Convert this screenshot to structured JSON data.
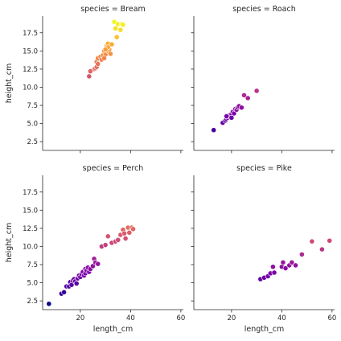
{
  "chart_data": {
    "type": "scatter",
    "xlabel": "length_cm",
    "ylabel": "height_cm",
    "xlim": [
      5,
      61
    ],
    "ylim": [
      1.3,
      19.8
    ],
    "xticks": [
      20,
      40,
      60
    ],
    "yticks": [
      2.5,
      5.0,
      7.5,
      10.0,
      12.5,
      15.0,
      17.5
    ],
    "xtick_labels": [
      "20",
      "40",
      "60"
    ],
    "ytick_labels": [
      "2.5",
      "5.0",
      "7.5",
      "10.0",
      "12.5",
      "15.0",
      "17.5"
    ],
    "hue_var": "height_cm",
    "colormap": "plasma",
    "hue_range": [
      2.1,
      19.0
    ],
    "facets": [
      {
        "title": "species = Bream",
        "points": [
          [
            23.5,
            11.5
          ],
          [
            24.0,
            12.2
          ],
          [
            25.5,
            12.5
          ],
          [
            26.0,
            12.6
          ],
          [
            26.5,
            12.8
          ],
          [
            26.5,
            13.5
          ],
          [
            27.0,
            14.0
          ],
          [
            27.0,
            13.2
          ],
          [
            28.0,
            14.2
          ],
          [
            28.5,
            13.8
          ],
          [
            29.0,
            14.4
          ],
          [
            29.5,
            15.0
          ],
          [
            30.0,
            14.5
          ],
          [
            30.5,
            15.3
          ],
          [
            31.0,
            15.0
          ],
          [
            29.5,
            14.0
          ],
          [
            30.5,
            15.7
          ],
          [
            31.0,
            16.0
          ],
          [
            31.5,
            15.2
          ],
          [
            32.0,
            14.6
          ],
          [
            33.5,
            19.0
          ],
          [
            34.0,
            18.1
          ],
          [
            34.5,
            16.9
          ],
          [
            35.0,
            18.7
          ],
          [
            36.0,
            17.9
          ],
          [
            36.5,
            18.7
          ],
          [
            37.0,
            18.6
          ],
          [
            31.0,
            15.5
          ],
          [
            32.5,
            15.9
          ],
          [
            30.0,
            15.2
          ]
        ]
      },
      {
        "title": "species = Roach",
        "points": [
          [
            12.9,
            4.1
          ],
          [
            16.5,
            5.1
          ],
          [
            17.5,
            5.4
          ],
          [
            18.0,
            5.6
          ],
          [
            18.5,
            5.8
          ],
          [
            19.0,
            6.1
          ],
          [
            19.5,
            5.9
          ],
          [
            20.0,
            6.3
          ],
          [
            20.5,
            6.6
          ],
          [
            21.0,
            6.4
          ],
          [
            21.5,
            7.0
          ],
          [
            22.0,
            6.9
          ],
          [
            22.5,
            7.2
          ],
          [
            23.0,
            7.4
          ],
          [
            24.0,
            7.2
          ],
          [
            25.0,
            8.9
          ],
          [
            26.5,
            8.5
          ],
          [
            30.0,
            9.5
          ],
          [
            18.0,
            6.0
          ],
          [
            20.0,
            5.8
          ]
        ]
      },
      {
        "title": "species = Perch",
        "points": [
          [
            7.5,
            2.1
          ],
          [
            12.5,
            3.5
          ],
          [
            13.5,
            3.7
          ],
          [
            14.5,
            4.5
          ],
          [
            15.5,
            4.5
          ],
          [
            16.0,
            5.1
          ],
          [
            16.5,
            4.7
          ],
          [
            17.0,
            5.3
          ],
          [
            17.5,
            5.5
          ],
          [
            18.0,
            5.2
          ],
          [
            18.5,
            4.9
          ],
          [
            19.0,
            5.6
          ],
          [
            19.5,
            6.0
          ],
          [
            20.0,
            5.8
          ],
          [
            20.5,
            6.2
          ],
          [
            21.0,
            6.5
          ],
          [
            21.5,
            6.0
          ],
          [
            22.0,
            6.3
          ],
          [
            22.0,
            6.9
          ],
          [
            22.5,
            6.7
          ],
          [
            23.0,
            7.1
          ],
          [
            23.5,
            6.5
          ],
          [
            24.0,
            6.9
          ],
          [
            25.0,
            7.3
          ],
          [
            25.5,
            8.3
          ],
          [
            26.0,
            7.8
          ],
          [
            27.0,
            7.6
          ],
          [
            28.5,
            10.0
          ],
          [
            30.0,
            10.2
          ],
          [
            31.0,
            11.4
          ],
          [
            32.5,
            10.5
          ],
          [
            34.0,
            10.7
          ],
          [
            35.0,
            10.9
          ],
          [
            36.0,
            11.6
          ],
          [
            37.0,
            12.3
          ],
          [
            37.5,
            11.8
          ],
          [
            38.0,
            11.1
          ],
          [
            39.0,
            12.6
          ],
          [
            39.5,
            11.9
          ],
          [
            40.5,
            12.6
          ],
          [
            41.0,
            12.4
          ]
        ]
      },
      {
        "title": "species = Pike",
        "points": [
          [
            31.5,
            5.5
          ],
          [
            33.0,
            5.7
          ],
          [
            34.5,
            5.9
          ],
          [
            35.5,
            6.3
          ],
          [
            36.5,
            7.2
          ],
          [
            37.0,
            6.4
          ],
          [
            40.0,
            7.2
          ],
          [
            40.5,
            7.8
          ],
          [
            41.5,
            7.0
          ],
          [
            43.0,
            7.4
          ],
          [
            44.0,
            7.8
          ],
          [
            45.5,
            7.4
          ],
          [
            48.0,
            8.9
          ],
          [
            52.0,
            10.7
          ],
          [
            56.0,
            9.6
          ],
          [
            59.0,
            10.8
          ]
        ]
      }
    ]
  }
}
